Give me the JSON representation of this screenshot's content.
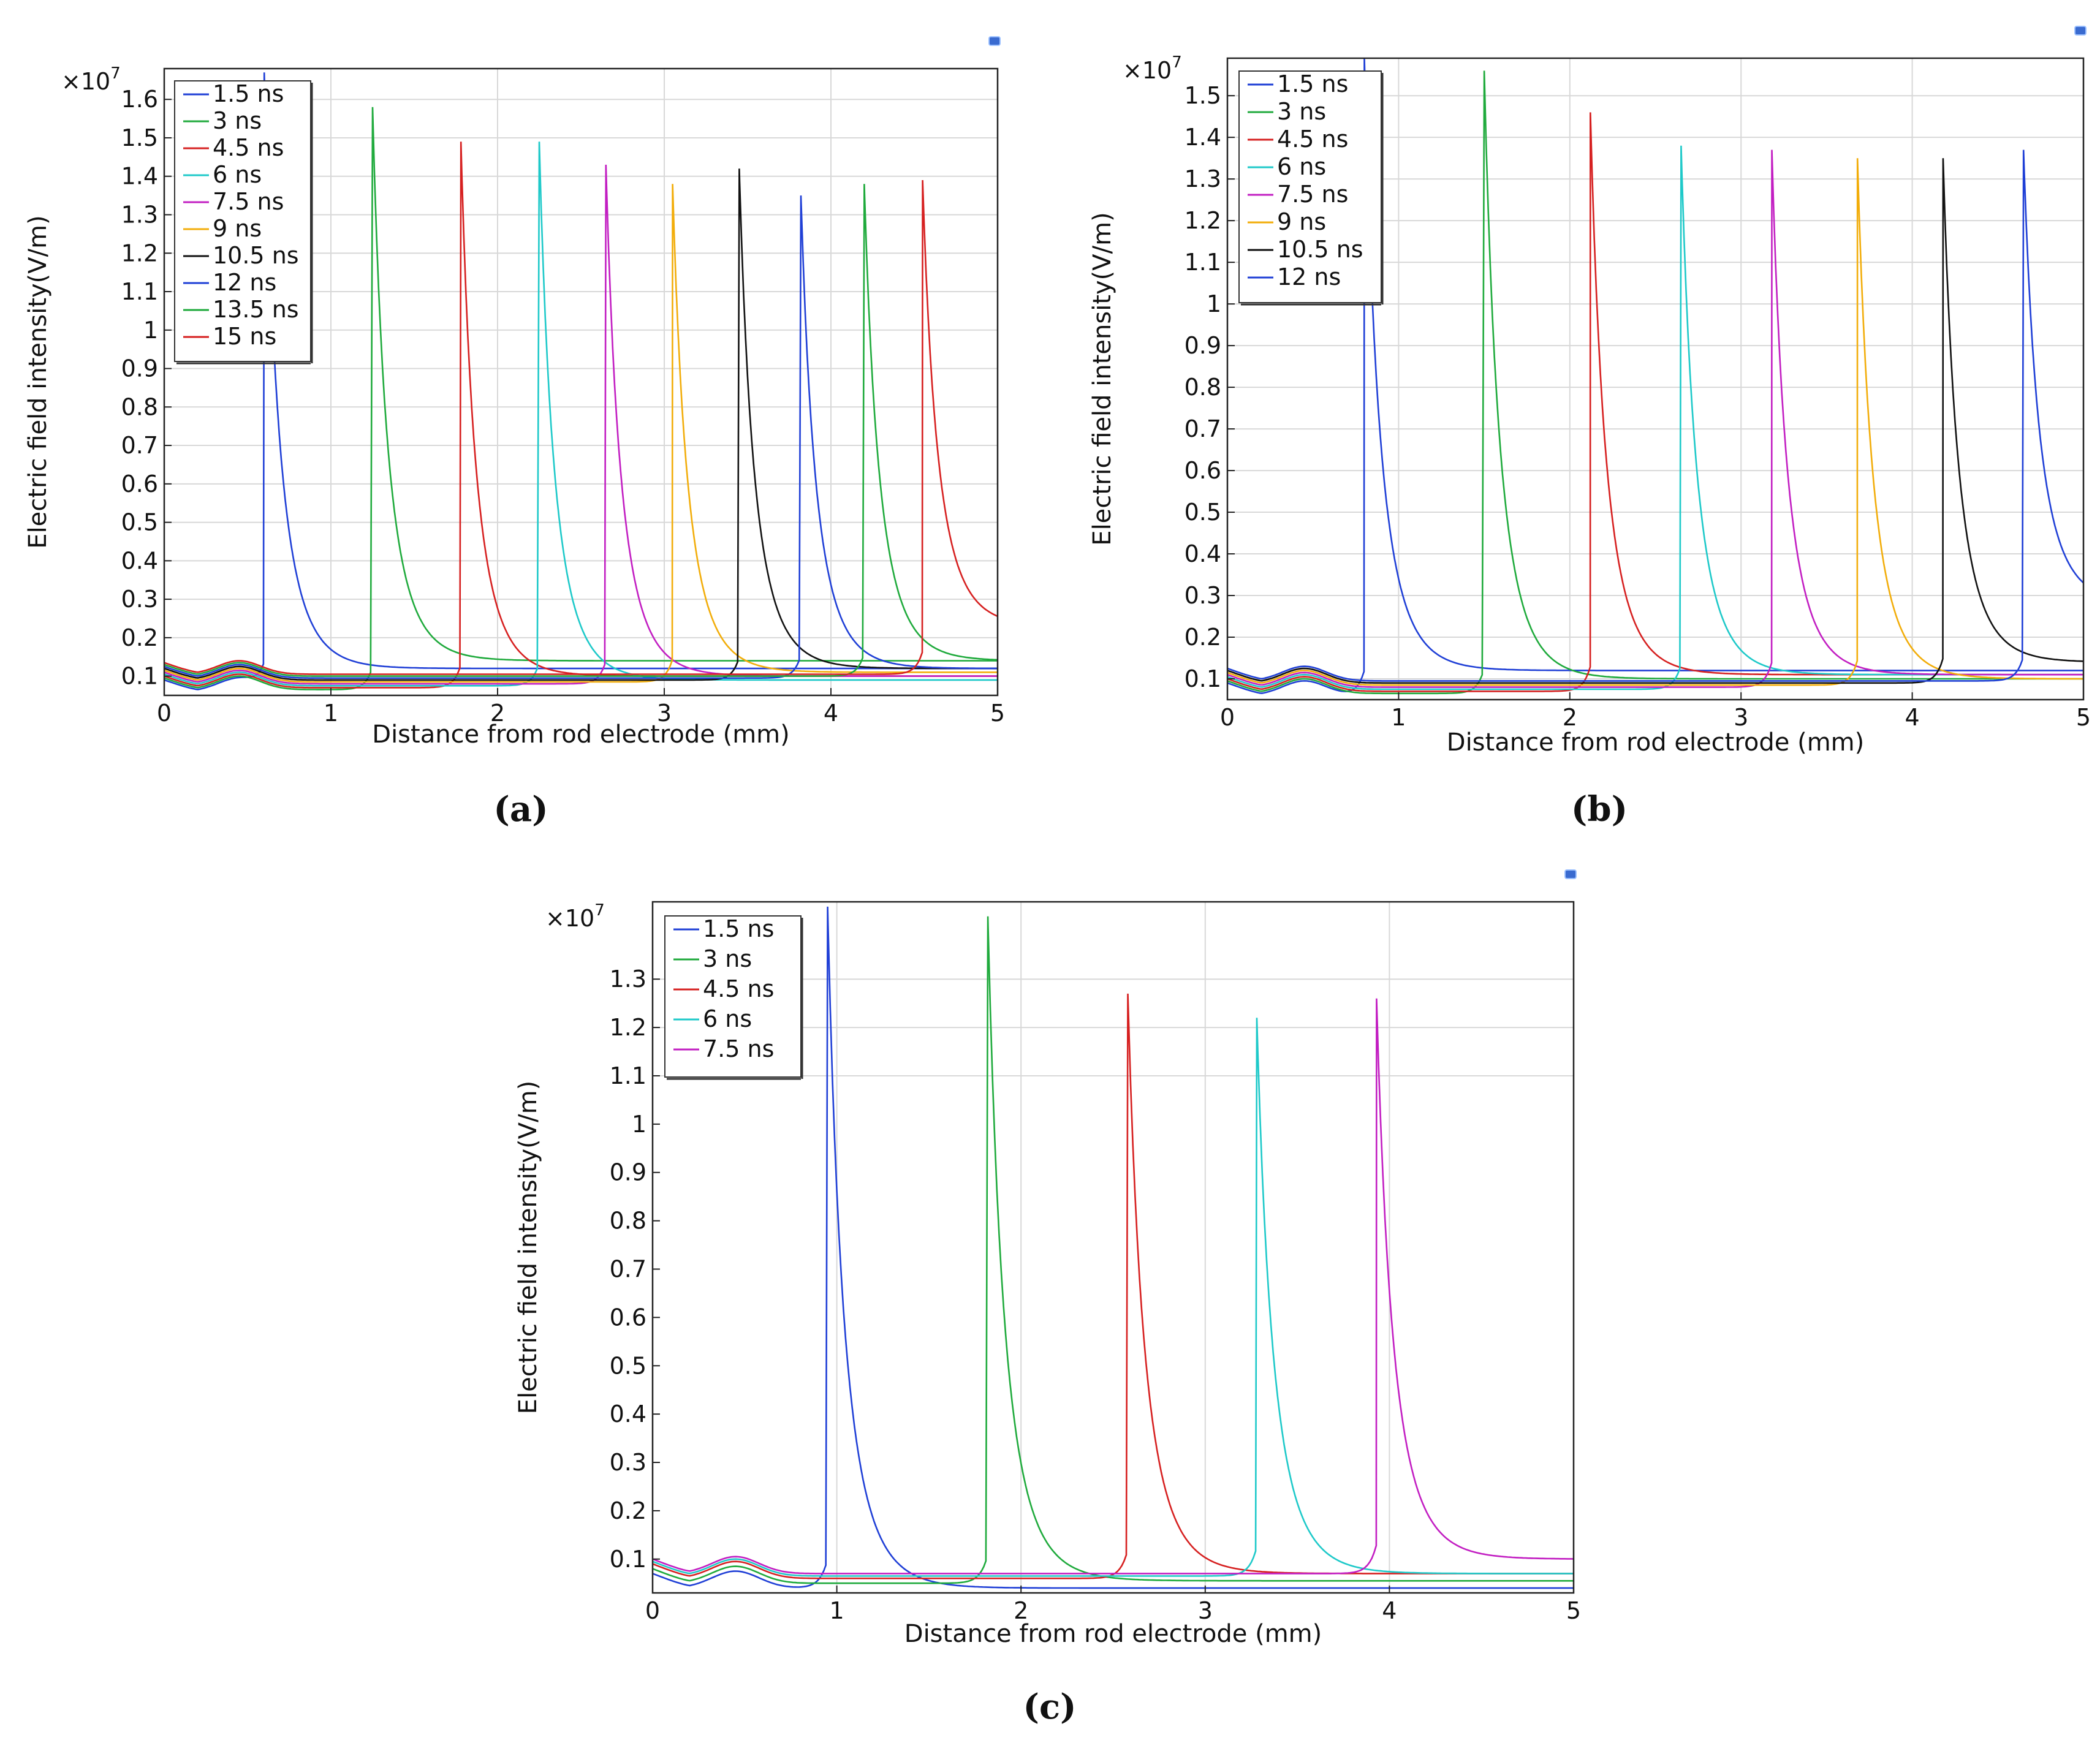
{
  "figure": {
    "panel_labels": [
      "(a)",
      "(b)",
      "(c)"
    ],
    "multiplier": "×10",
    "multiplier_exp": "7"
  },
  "chart_data": [
    {
      "panel": "(a)",
      "type": "line",
      "xlabel": "Distance from rod electrode (mm)",
      "ylabel": "Electric field intensity(V/m)",
      "xlim": [
        0,
        5
      ],
      "ylim": [
        0.05,
        1.68
      ],
      "xticks": [
        0,
        1,
        2,
        3,
        4,
        5
      ],
      "yticks": [
        0.1,
        0.2,
        0.3,
        0.4,
        0.5,
        0.6,
        0.7,
        0.8,
        0.9,
        1,
        1.1,
        1.2,
        1.3,
        1.4,
        1.5,
        1.6
      ],
      "ytick_labels": [
        "0.1",
        "0.2",
        "0.3",
        "0.4",
        "0.5",
        "0.6",
        "0.7",
        "0.8",
        "0.9",
        "1",
        "1.1",
        "1.2",
        "1.3",
        "1.4",
        "1.5",
        "1.6"
      ],
      "gridlines_y": [
        0.1,
        0.2,
        0.3,
        0.4,
        0.5,
        0.6,
        0.7,
        0.8,
        0.9,
        1,
        1.1,
        1.2,
        1.3,
        1.4,
        1.5,
        1.6
      ],
      "gridlines_x": [
        0,
        1,
        2,
        3,
        4,
        5
      ],
      "legend_position": "top-left",
      "y_scale_note": "x10^7",
      "series": [
        {
          "name": "1.5 ns",
          "color": "#1f3fd6",
          "front": 0.6,
          "peak": 1.67,
          "tail": 0.12,
          "base": 0.06
        },
        {
          "name": "3 ns",
          "color": "#1faa3c",
          "front": 1.25,
          "peak": 1.58,
          "tail": 0.14,
          "base": 0.065
        },
        {
          "name": "4.5 ns",
          "color": "#d62020",
          "front": 1.78,
          "peak": 1.49,
          "tail": 0.1,
          "base": 0.07
        },
        {
          "name": "6 ns",
          "color": "#1ec9c9",
          "front": 2.25,
          "peak": 1.49,
          "tail": 0.09,
          "base": 0.075
        },
        {
          "name": "7.5 ns",
          "color": "#c21ec2",
          "front": 2.65,
          "peak": 1.43,
          "tail": 0.1,
          "base": 0.08
        },
        {
          "name": "9 ns",
          "color": "#f2ad0a",
          "front": 3.05,
          "peak": 1.38,
          "tail": 0.11,
          "base": 0.085
        },
        {
          "name": "10.5 ns",
          "color": "#111111",
          "front": 3.45,
          "peak": 1.42,
          "tail": 0.12,
          "base": 0.09
        },
        {
          "name": "12 ns",
          "color": "#1f3fd6",
          "front": 3.82,
          "peak": 1.35,
          "tail": 0.12,
          "base": 0.095
        },
        {
          "name": "13.5 ns",
          "color": "#1faa3c",
          "front": 4.2,
          "peak": 1.38,
          "tail": 0.14,
          "base": 0.1
        },
        {
          "name": "15 ns",
          "color": "#d62020",
          "front": 4.55,
          "peak": 1.39,
          "tail": 0.23,
          "base": 0.105
        }
      ]
    },
    {
      "panel": "(b)",
      "type": "line",
      "xlabel": "Distance from rod electrode (mm)",
      "ylabel": "Electric field intensity(V/m)",
      "xlim": [
        0,
        5
      ],
      "ylim": [
        0.05,
        1.59
      ],
      "xticks": [
        0,
        1,
        2,
        3,
        4,
        5
      ],
      "yticks": [
        0.1,
        0.2,
        0.3,
        0.4,
        0.5,
        0.6,
        0.7,
        0.8,
        0.9,
        1,
        1.1,
        1.2,
        1.3,
        1.4,
        1.5
      ],
      "ytick_labels": [
        "0.1",
        "0.2",
        "0.3",
        "0.4",
        "0.5",
        "0.6",
        "0.7",
        "0.8",
        "0.9",
        "1",
        "1.1",
        "1.2",
        "1.3",
        "1.4",
        "1.5"
      ],
      "gridlines_y": [
        0.1,
        0.2,
        0.3,
        0.4,
        0.5,
        0.6,
        0.7,
        0.8,
        0.9,
        1,
        1.1,
        1.2,
        1.3,
        1.4,
        1.5
      ],
      "gridlines_x": [
        0,
        1,
        2,
        3,
        4,
        5
      ],
      "legend_position": "top-left",
      "y_scale_note": "x10^7",
      "series": [
        {
          "name": "1.5 ns",
          "color": "#1f3fd6",
          "front": 0.8,
          "peak": 1.59,
          "tail": 0.12,
          "base": 0.06
        },
        {
          "name": "3 ns",
          "color": "#1faa3c",
          "front": 1.5,
          "peak": 1.56,
          "tail": 0.1,
          "base": 0.065
        },
        {
          "name": "4.5 ns",
          "color": "#d62020",
          "front": 2.12,
          "peak": 1.46,
          "tail": 0.11,
          "base": 0.07
        },
        {
          "name": "6 ns",
          "color": "#1ec9c9",
          "front": 2.65,
          "peak": 1.38,
          "tail": 0.11,
          "base": 0.075
        },
        {
          "name": "7.5 ns",
          "color": "#c21ec2",
          "front": 3.18,
          "peak": 1.37,
          "tail": 0.11,
          "base": 0.08
        },
        {
          "name": "9 ns",
          "color": "#f2ad0a",
          "front": 3.68,
          "peak": 1.35,
          "tail": 0.1,
          "base": 0.085
        },
        {
          "name": "10.5 ns",
          "color": "#111111",
          "front": 4.18,
          "peak": 1.35,
          "tail": 0.14,
          "base": 0.09
        },
        {
          "name": "12 ns",
          "color": "#1f3fd6",
          "front": 4.65,
          "peak": 1.37,
          "tail": 0.28,
          "base": 0.095
        }
      ]
    },
    {
      "panel": "(c)",
      "type": "line",
      "xlabel": "Distance from rod electrode (mm)",
      "ylabel": "Electric field intensity(V/m)",
      "xlim": [
        0,
        5
      ],
      "ylim": [
        0.03,
        1.46
      ],
      "xticks": [
        0,
        1,
        2,
        3,
        4,
        5
      ],
      "yticks": [
        0.1,
        0.2,
        0.3,
        0.4,
        0.5,
        0.6,
        0.7,
        0.8,
        0.9,
        1,
        1.1,
        1.2,
        1.3
      ],
      "ytick_labels": [
        "0.1",
        "0.2",
        "0.3",
        "0.4",
        "0.5",
        "0.6",
        "0.7",
        "0.8",
        "0.9",
        "1",
        "1.1",
        "1.2",
        "1.3"
      ],
      "gridlines_y": [
        1.1,
        1.2,
        1.3
      ],
      "gridlines_x": [
        1,
        2,
        3,
        4
      ],
      "legend_position": "top-left",
      "y_scale_note": "x10^7",
      "series": [
        {
          "name": "1.5 ns",
          "color": "#1f3fd6",
          "front": 0.95,
          "peak": 1.45,
          "tail": 0.04,
          "base": 0.04
        },
        {
          "name": "3 ns",
          "color": "#1faa3c",
          "front": 1.82,
          "peak": 1.43,
          "tail": 0.055,
          "base": 0.05
        },
        {
          "name": "4.5 ns",
          "color": "#d62020",
          "front": 2.58,
          "peak": 1.27,
          "tail": 0.07,
          "base": 0.06
        },
        {
          "name": "6 ns",
          "color": "#1ec9c9",
          "front": 3.28,
          "peak": 1.22,
          "tail": 0.07,
          "base": 0.065
        },
        {
          "name": "7.5 ns",
          "color": "#c21ec2",
          "front": 3.93,
          "peak": 1.26,
          "tail": 0.1,
          "base": 0.07
        }
      ]
    }
  ]
}
